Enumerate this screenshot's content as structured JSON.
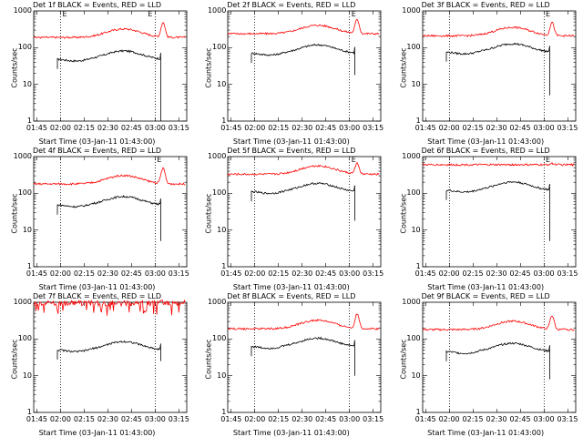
{
  "chart_data": [
    {
      "type": "line",
      "title": "Det 1f BLACK = Events, RED = LLD",
      "xlabel": "Start Time (03-Jan-11 01:43:00)",
      "ylabel": "Counts/sec",
      "xtick_labels": [
        "01:45",
        "02:00",
        "02:15",
        "02:30",
        "02:45",
        "03:00",
        "03:15"
      ],
      "ytick_labels": [
        "1",
        "10",
        "100",
        "1000"
      ],
      "yscale": "log",
      "ylim": [
        1,
        1000
      ],
      "series": [
        {
          "name": "Events",
          "color": "#000000",
          "base": 48,
          "end_dip": 1
        },
        {
          "name": "LLD",
          "color": "#ff0000",
          "base": 190,
          "peak": 480
        }
      ],
      "markers": [
        "E",
        "E"
      ]
    },
    {
      "type": "line",
      "title": "Det 2f BLACK = Events, RED = LLD",
      "xlabel": "Start Time (03-Jan-11 01:43:00)",
      "ylabel": "Counts/sec",
      "xtick_labels": [
        "01:45",
        "02:00",
        "02:15",
        "02:30",
        "02:45",
        "03:00",
        "03:15"
      ],
      "ytick_labels": [
        "1",
        "10",
        "100",
        "1000"
      ],
      "yscale": "log",
      "ylim": [
        1,
        1000
      ],
      "series": [
        {
          "name": "Events",
          "color": "#000000",
          "base": 70,
          "end_dip": 18
        },
        {
          "name": "LLD",
          "color": "#ff0000",
          "base": 240,
          "peak": 580
        }
      ],
      "markers": [
        "E"
      ]
    },
    {
      "type": "line",
      "title": "Det 3f BLACK = Events, RED = LLD",
      "xlabel": "Start Time (03-Jan-11 01:43:00)",
      "ylabel": "Counts/sec",
      "xtick_labels": [
        "01:45",
        "02:00",
        "02:15",
        "02:30",
        "02:45",
        "03:00",
        "03:15"
      ],
      "ytick_labels": [
        "1",
        "10",
        "100",
        "1000"
      ],
      "yscale": "log",
      "ylim": [
        1,
        1000
      ],
      "series": [
        {
          "name": "Events",
          "color": "#000000",
          "base": 75,
          "end_dip": 5
        },
        {
          "name": "LLD",
          "color": "#ff0000",
          "base": 210,
          "peak": 480
        }
      ],
      "markers": [
        "E"
      ]
    },
    {
      "type": "line",
      "title": "Det 4f BLACK = Events, RED = LLD",
      "xlabel": "Start Time (03-Jan-11 01:43:00)",
      "ylabel": "Counts/sec",
      "xtick_labels": [
        "01:45",
        "02:00",
        "02:15",
        "02:30",
        "02:45",
        "03:00",
        "03:15"
      ],
      "ytick_labels": [
        "1",
        "10",
        "100",
        "1000"
      ],
      "yscale": "log",
      "ylim": [
        1,
        1000
      ],
      "series": [
        {
          "name": "Events",
          "color": "#000000",
          "base": 48,
          "end_dip": 5
        },
        {
          "name": "LLD",
          "color": "#ff0000",
          "base": 180,
          "peak": 480
        }
      ],
      "markers": [
        "E"
      ]
    },
    {
      "type": "line",
      "title": "Det 5f BLACK = Events, RED = LLD",
      "xlabel": "Start Time (03-Jan-11 01:43:00)",
      "ylabel": "Counts/sec",
      "xtick_labels": [
        "01:45",
        "02:00",
        "02:15",
        "02:30",
        "02:45",
        "03:00",
        "03:15"
      ],
      "ytick_labels": [
        "1",
        "10",
        "100",
        "1000"
      ],
      "yscale": "log",
      "ylim": [
        1,
        1000
      ],
      "series": [
        {
          "name": "Events",
          "color": "#000000",
          "base": 110,
          "end_dip": 18
        },
        {
          "name": "LLD",
          "color": "#ff0000",
          "base": 330,
          "peak": 650
        }
      ],
      "markers": [
        "E"
      ]
    },
    {
      "type": "line",
      "title": "Det 6f BLACK = Events, RED = LLD",
      "xlabel": "Start Time (03-Jan-11 01:43:00)",
      "ylabel": "Counts/sec",
      "xtick_labels": [
        "01:45",
        "02:00",
        "02:15",
        "02:30",
        "02:45",
        "03:00",
        "03:15"
      ],
      "ytick_labels": [
        "1",
        "10",
        "100",
        "1000"
      ],
      "yscale": "log",
      "ylim": [
        1,
        1000
      ],
      "series": [
        {
          "name": "Events",
          "color": "#000000",
          "base": 120,
          "end_dip": 5
        },
        {
          "name": "LLD",
          "color": "#ff0000",
          "base": 600,
          "peak": 650,
          "flat": true
        }
      ],
      "markers": [
        "E"
      ]
    },
    {
      "type": "line",
      "title": "Det 7f BLACK = Events, RED = LLD",
      "xlabel": "Start Time (03-Jan-11 01:43:00)",
      "ylabel": "Counts/sec",
      "xtick_labels": [
        "01:45",
        "02:00",
        "02:15",
        "02:30",
        "02:45",
        "03:00",
        "03:15"
      ],
      "ytick_labels": [
        "1",
        "10",
        "100",
        "1000"
      ],
      "yscale": "log",
      "ylim": [
        1,
        1000
      ],
      "series": [
        {
          "name": "Events",
          "color": "#000000",
          "base": 50,
          "end_dip": 25
        },
        {
          "name": "LLD",
          "color": "#ff0000",
          "base": 950,
          "peak": 1000,
          "flat": true,
          "noisy": true
        }
      ],
      "markers": []
    },
    {
      "type": "line",
      "title": "Det 8f BLACK = Events, RED = LLD",
      "xlabel": "Start Time (03-Jan-11 01:43:00)",
      "ylabel": "Counts/sec",
      "xtick_labels": [
        "01:45",
        "02:00",
        "02:15",
        "02:30",
        "02:45",
        "03:00",
        "03:15"
      ],
      "ytick_labels": [
        "1",
        "10",
        "100",
        "1000"
      ],
      "yscale": "log",
      "ylim": [
        1,
        1000
      ],
      "series": [
        {
          "name": "Events",
          "color": "#000000",
          "base": 62,
          "end_dip": 10
        },
        {
          "name": "LLD",
          "color": "#ff0000",
          "base": 190,
          "peak": 480
        }
      ],
      "markers": []
    },
    {
      "type": "line",
      "title": "Det 9f BLACK = Events, RED = LLD",
      "xlabel": "Start Time (03-Jan-11 01:43:00)",
      "ylabel": "Counts/sec",
      "xtick_labels": [
        "01:45",
        "02:00",
        "02:15",
        "02:30",
        "02:45",
        "03:00",
        "03:15"
      ],
      "ytick_labels": [
        "1",
        "10",
        "100",
        "1000"
      ],
      "yscale": "log",
      "ylim": [
        1,
        1000
      ],
      "series": [
        {
          "name": "Events",
          "color": "#000000",
          "base": 45,
          "end_dip": 8
        },
        {
          "name": "LLD",
          "color": "#ff0000",
          "base": 180,
          "peak": 430
        }
      ],
      "markers": []
    }
  ]
}
